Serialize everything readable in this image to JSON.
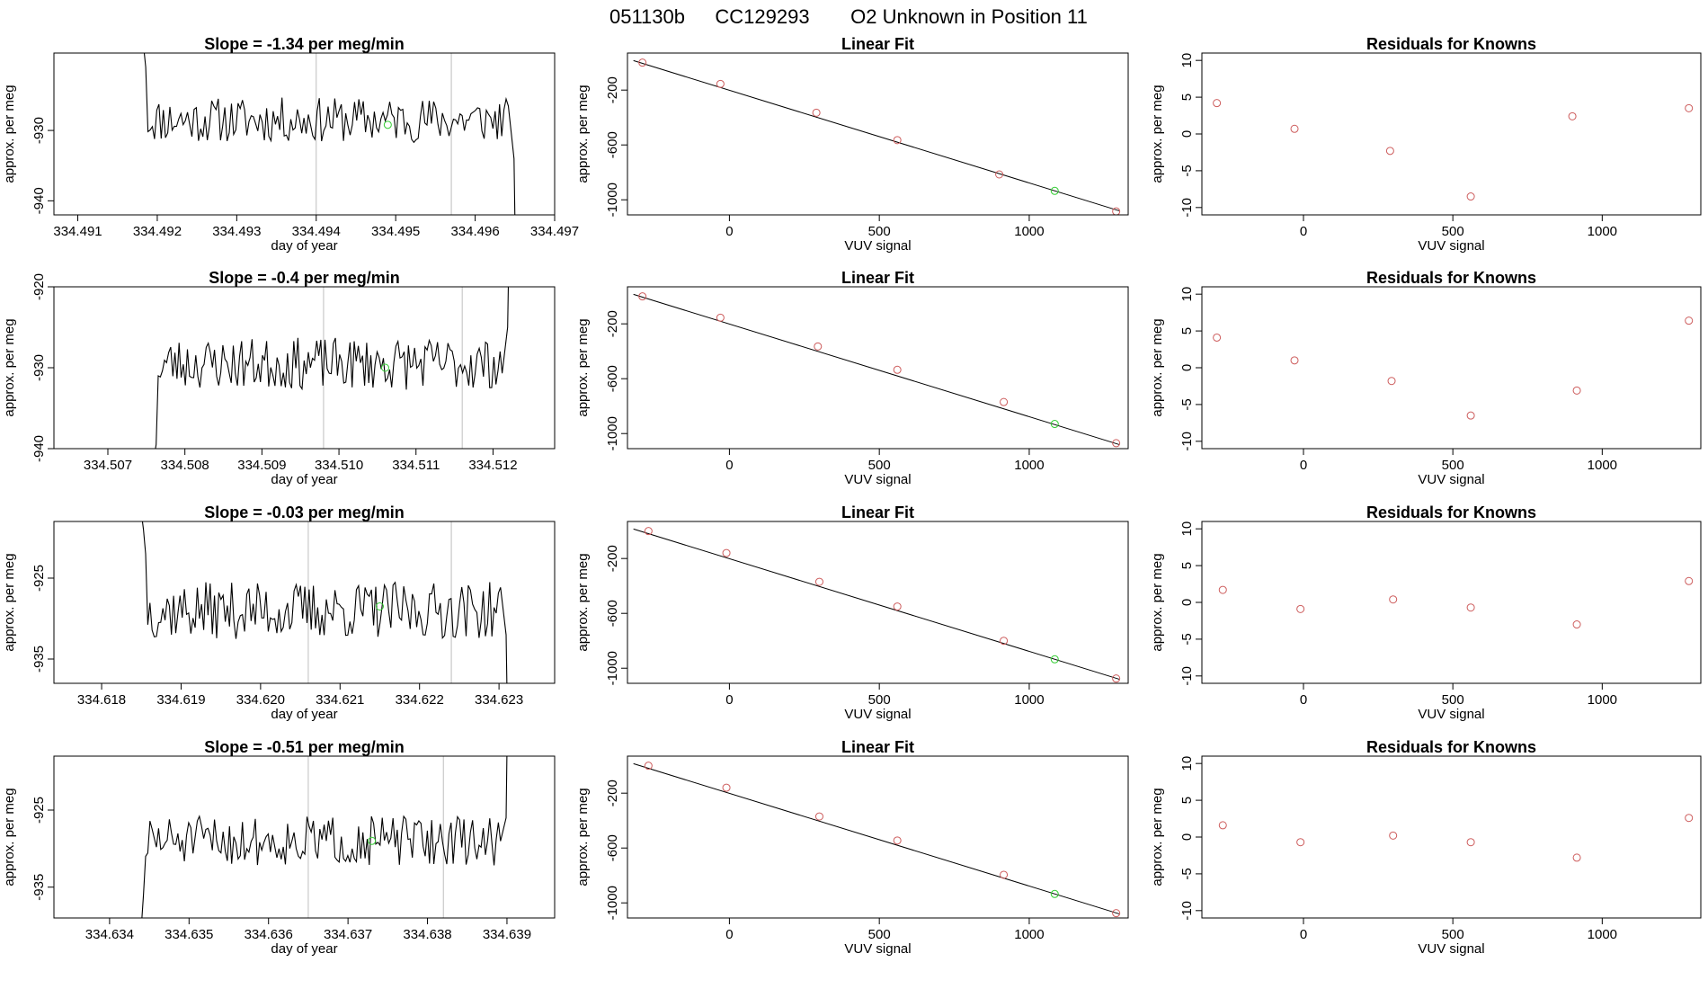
{
  "figure_title": {
    "run_id": "051130b",
    "tank_id": "CC129293",
    "description": "O2 Unknown in Position  11"
  },
  "colors": {
    "trace": "#000000",
    "vline": "#bebebe",
    "known_point": "#cd5c5c",
    "unknown_point": "#32cd32",
    "fit_line": "#000000",
    "box": "#000000"
  },
  "chart_data": [
    {
      "type": "line",
      "panel": "trace",
      "title": "Slope =  -1.34  per meg/min",
      "xlabel": "day of year",
      "ylabel": "approx. per meg",
      "xlim": [
        334.4907,
        334.497
      ],
      "ylim": [
        -942.0,
        -919.0
      ],
      "xticks": [
        334.491,
        334.492,
        334.493,
        334.494,
        334.495,
        334.496,
        334.497
      ],
      "xtick_labels": [
        "334.491",
        "334.492",
        "334.493",
        "334.494",
        "334.495",
        "334.496",
        "334.497"
      ],
      "yticks": [
        -930,
        -940
      ],
      "ytick_labels": [
        "-930",
        "-940"
      ],
      "vlines": [
        334.494,
        334.4957
      ],
      "trace_start": 334.4918,
      "trace_end": 334.4965,
      "trace_baseline": -928.5,
      "trace_amplitude": 2.0,
      "trace_seed": 11,
      "trace_head": [
        -919.0,
        -918.0,
        -921.0
      ],
      "trace_tail": [
        -934.0,
        -942.5
      ],
      "unknown_point": {
        "x": 334.4949,
        "y": -929.2
      }
    },
    {
      "type": "line",
      "panel": "fit",
      "title": "Linear Fit",
      "xlabel": "VUV signal",
      "ylabel": "approx. per meg",
      "xlim": [
        -340,
        1330
      ],
      "ylim": [
        -1110,
        70
      ],
      "xticks": [
        0,
        500,
        1000
      ],
      "xtick_labels": [
        "0",
        "500",
        "1000"
      ],
      "yticks": [
        -200,
        -600,
        -1000
      ],
      "ytick_labels": [
        "-200",
        "-600",
        "-1000"
      ],
      "fit_line": {
        "x0": -320,
        "y0": 15,
        "x1": 1300,
        "y1": -1080
      },
      "known_points": [
        [
          -290,
          0
        ],
        [
          -30,
          -155
        ],
        [
          290,
          -365
        ],
        [
          560,
          -565
        ],
        [
          900,
          -815
        ],
        [
          1290,
          -1085
        ]
      ],
      "unknown_point": {
        "x": 1085,
        "y": -935
      }
    },
    {
      "type": "scatter",
      "panel": "residuals",
      "title": "Residuals for Knowns",
      "xlabel": "VUV signal",
      "ylabel": "approx. per meg",
      "xlim": [
        -340,
        1330
      ],
      "ylim": [
        -11,
        11
      ],
      "xticks": [
        0,
        500,
        1000
      ],
      "xtick_labels": [
        "0",
        "500",
        "1000"
      ],
      "yticks": [
        10,
        5,
        0,
        -5,
        -10
      ],
      "ytick_labels": [
        "10",
        "5",
        "0",
        "-5",
        "-10"
      ],
      "points": [
        [
          -290,
          4.2
        ],
        [
          -30,
          0.7
        ],
        [
          290,
          -2.3
        ],
        [
          560,
          -8.5
        ],
        [
          900,
          2.4
        ],
        [
          1290,
          3.5
        ]
      ]
    },
    {
      "type": "line",
      "panel": "trace",
      "title": "Slope =  -0.4  per meg/min",
      "xlabel": "day of year",
      "ylabel": "approx. per meg",
      "xlim": [
        334.5063,
        334.5128
      ],
      "ylim": [
        -940.0,
        -920.0
      ],
      "xticks": [
        334.507,
        334.508,
        334.509,
        334.51,
        334.511,
        334.512
      ],
      "xtick_labels": [
        "334.507",
        "334.508",
        "334.509",
        "334.510",
        "334.511",
        "334.512"
      ],
      "yticks": [
        -920,
        -930,
        -940
      ],
      "ytick_labels": [
        "-920",
        "-930",
        "-940"
      ],
      "vlines": [
        334.5098,
        334.5116
      ],
      "trace_start": 334.5076,
      "trace_end": 334.5122,
      "trace_baseline": -929.5,
      "trace_amplitude": 2.0,
      "trace_seed": 23,
      "trace_head": [
        -941.0,
        -939.5,
        -931.0
      ],
      "trace_tail": [
        -925.0,
        -919.0
      ],
      "unknown_point": {
        "x": 334.5106,
        "y": -930.0
      }
    },
    {
      "type": "line",
      "panel": "fit",
      "title": "Linear Fit",
      "xlabel": "VUV signal",
      "ylabel": "approx. per meg",
      "xlim": [
        -340,
        1330
      ],
      "ylim": [
        -1110,
        70
      ],
      "xticks": [
        0,
        500,
        1000
      ],
      "xtick_labels": [
        "0",
        "500",
        "1000"
      ],
      "yticks": [
        -200,
        -600,
        -1000
      ],
      "ytick_labels": [
        "-200",
        "-600",
        "-1000"
      ],
      "fit_line": {
        "x0": -320,
        "y0": 15,
        "x1": 1300,
        "y1": -1080
      },
      "known_points": [
        [
          -290,
          0
        ],
        [
          -30,
          -155
        ],
        [
          295,
          -365
        ],
        [
          560,
          -535
        ],
        [
          915,
          -770
        ],
        [
          1290,
          -1070
        ]
      ],
      "unknown_point": {
        "x": 1085,
        "y": -930
      }
    },
    {
      "type": "scatter",
      "panel": "residuals",
      "title": "Residuals for Knowns",
      "xlabel": "VUV signal",
      "ylabel": "approx. per meg",
      "xlim": [
        -340,
        1330
      ],
      "ylim": [
        -11,
        11
      ],
      "xticks": [
        0,
        500,
        1000
      ],
      "xtick_labels": [
        "0",
        "500",
        "1000"
      ],
      "yticks": [
        10,
        5,
        0,
        -5,
        -10
      ],
      "ytick_labels": [
        "10",
        "5",
        "0",
        "-5",
        "-10"
      ],
      "points": [
        [
          -290,
          4.1
        ],
        [
          -30,
          1.0
        ],
        [
          295,
          -1.8
        ],
        [
          560,
          -6.5
        ],
        [
          915,
          -3.1
        ],
        [
          1290,
          6.4
        ]
      ]
    },
    {
      "type": "line",
      "panel": "trace",
      "title": "Slope =  -0.03  per meg/min",
      "xlabel": "day of year",
      "ylabel": "approx. per meg",
      "xlim": [
        334.6174,
        334.6237
      ],
      "ylim": [
        -938.0,
        -918.0
      ],
      "xticks": [
        334.618,
        334.619,
        334.62,
        334.621,
        334.622,
        334.623
      ],
      "xtick_labels": [
        "334.618",
        "334.619",
        "334.620",
        "334.621",
        "334.622",
        "334.623"
      ],
      "yticks": [
        -925,
        -935
      ],
      "ytick_labels": [
        "-925",
        "-935"
      ],
      "vlines": [
        334.6206,
        334.6224
      ],
      "trace_start": 334.6185,
      "trace_end": 334.6231,
      "trace_baseline": -929.0,
      "trace_amplitude": 2.2,
      "trace_seed": 37,
      "trace_head": [
        -917.0,
        -919.0,
        -922.0
      ],
      "trace_tail": [
        -932.0,
        -939.0
      ],
      "unknown_point": {
        "x": 334.6215,
        "y": -928.5
      }
    },
    {
      "type": "line",
      "panel": "fit",
      "title": "Linear Fit",
      "xlabel": "VUV signal",
      "ylabel": "approx. per meg",
      "xlim": [
        -340,
        1330
      ],
      "ylim": [
        -1110,
        70
      ],
      "xticks": [
        0,
        500,
        1000
      ],
      "xtick_labels": [
        "0",
        "500",
        "1000"
      ],
      "yticks": [
        -200,
        -600,
        -1000
      ],
      "ytick_labels": [
        "-200",
        "-600",
        "-1000"
      ],
      "fit_line": {
        "x0": -320,
        "y0": 15,
        "x1": 1300,
        "y1": -1080
      },
      "known_points": [
        [
          -270,
          0
        ],
        [
          -10,
          -160
        ],
        [
          300,
          -370
        ],
        [
          560,
          -550
        ],
        [
          915,
          -800
        ],
        [
          1290,
          -1075
        ]
      ],
      "unknown_point": {
        "x": 1085,
        "y": -935
      }
    },
    {
      "type": "scatter",
      "panel": "residuals",
      "title": "Residuals for Knowns",
      "xlabel": "VUV signal",
      "ylabel": "approx. per meg",
      "xlim": [
        -340,
        1330
      ],
      "ylim": [
        -11,
        11
      ],
      "xticks": [
        0,
        500,
        1000
      ],
      "xtick_labels": [
        "0",
        "500",
        "1000"
      ],
      "yticks": [
        10,
        5,
        0,
        -5,
        -10
      ],
      "ytick_labels": [
        "10",
        "5",
        "0",
        "-5",
        "-10"
      ],
      "points": [
        [
          -270,
          1.7
        ],
        [
          -10,
          -0.9
        ],
        [
          300,
          0.4
        ],
        [
          560,
          -0.7
        ],
        [
          915,
          -3.0
        ],
        [
          1290,
          2.9
        ]
      ]
    },
    {
      "type": "line",
      "panel": "trace",
      "title": "Slope =  -0.51  per meg/min",
      "xlabel": "day of year",
      "ylabel": "approx. per meg",
      "xlim": [
        334.6333,
        334.6396
      ],
      "ylim": [
        -939.0,
        -918.0
      ],
      "xticks": [
        334.634,
        334.635,
        334.636,
        334.637,
        334.638,
        334.639
      ],
      "xtick_labels": [
        "334.634",
        "334.635",
        "334.636",
        "334.637",
        "334.638",
        "334.639"
      ],
      "yticks": [
        -925,
        -935
      ],
      "ytick_labels": [
        "-925",
        "-935"
      ],
      "vlines": [
        334.6365,
        334.6382
      ],
      "trace_start": 334.6344,
      "trace_end": 334.639,
      "trace_baseline": -929.0,
      "trace_amplitude": 2.0,
      "trace_seed": 51,
      "trace_head": [
        -940.0,
        -936.0,
        -931.0
      ],
      "trace_tail": [
        -926.0,
        -917.0
      ],
      "unknown_point": {
        "x": 334.6373,
        "y": -929.0
      }
    },
    {
      "type": "line",
      "panel": "fit",
      "title": "Linear Fit",
      "xlabel": "VUV signal",
      "ylabel": "approx. per meg",
      "xlim": [
        -340,
        1330
      ],
      "ylim": [
        -1110,
        70
      ],
      "xticks": [
        0,
        500,
        1000
      ],
      "xtick_labels": [
        "0",
        "500",
        "1000"
      ],
      "yticks": [
        -200,
        -600,
        -1000
      ],
      "ytick_labels": [
        "-200",
        "-600",
        "-1000"
      ],
      "fit_line": {
        "x0": -320,
        "y0": 15,
        "x1": 1300,
        "y1": -1080
      },
      "known_points": [
        [
          -270,
          0
        ],
        [
          -10,
          -160
        ],
        [
          300,
          -370
        ],
        [
          560,
          -545
        ],
        [
          915,
          -795
        ],
        [
          1290,
          -1075
        ]
      ],
      "unknown_point": {
        "x": 1085,
        "y": -935
      }
    },
    {
      "type": "scatter",
      "panel": "residuals",
      "title": "Residuals for Knowns",
      "xlabel": "VUV signal",
      "ylabel": "approx. per meg",
      "xlim": [
        -340,
        1330
      ],
      "ylim": [
        -11,
        11
      ],
      "xticks": [
        0,
        500,
        1000
      ],
      "xtick_labels": [
        "0",
        "500",
        "1000"
      ],
      "yticks": [
        10,
        5,
        0,
        -5,
        -10
      ],
      "ytick_labels": [
        "10",
        "5",
        "0",
        "-5",
        "-10"
      ],
      "points": [
        [
          -270,
          1.6
        ],
        [
          -10,
          -0.7
        ],
        [
          300,
          0.2
        ],
        [
          560,
          -0.7
        ],
        [
          915,
          -2.8
        ],
        [
          1290,
          2.6
        ]
      ]
    }
  ]
}
